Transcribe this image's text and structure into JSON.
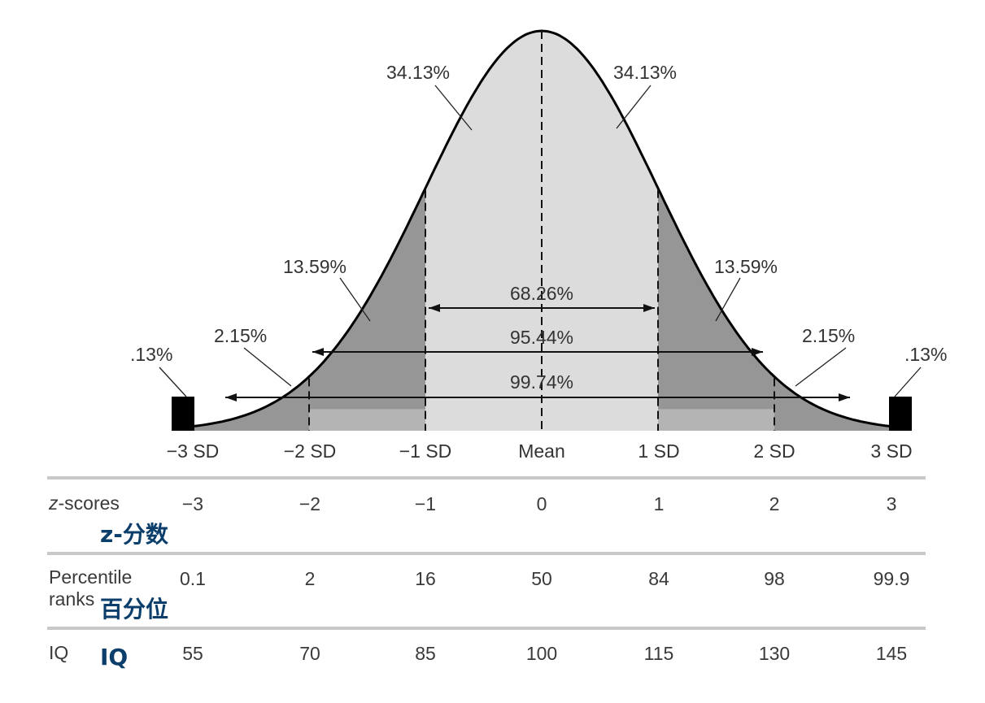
{
  "diagram": {
    "areas": {
      "center_left": "34.13%",
      "center_right": "34.13%",
      "mid_left": "13.59%",
      "mid_right": "13.59%",
      "outer_left": "2.15%",
      "outer_right": "2.15%",
      "tail_left": ".13%",
      "tail_right": ".13%"
    },
    "spans": [
      "68.26%",
      "95.44%",
      "99.74%"
    ],
    "sd_labels": [
      "−3 SD",
      "−2 SD",
      "−1 SD",
      "Mean",
      "1 SD",
      "2 SD",
      "3 SD"
    ],
    "colors": {
      "center": "#dcdcdc",
      "mid": "#969696",
      "outer": "#b4b4b4",
      "tail": "#000000",
      "curve": "#000000"
    }
  },
  "table": {
    "zscores": {
      "label_en": "z-scores",
      "label_cn": "z-分数",
      "values": [
        "−3",
        "−2",
        "−1",
        "0",
        "1",
        "2",
        "3"
      ]
    },
    "percentile": {
      "label_en_line1": "Percentile",
      "label_en_line2": "ranks",
      "label_cn": "百分位",
      "values": [
        "0.1",
        "2",
        "16",
        "50",
        "84",
        "98",
        "99.9"
      ]
    },
    "iq": {
      "label_en": "IQ",
      "label_cn": "IQ",
      "values": [
        "55",
        "70",
        "85",
        "100",
        "115",
        "130",
        "145"
      ]
    }
  }
}
